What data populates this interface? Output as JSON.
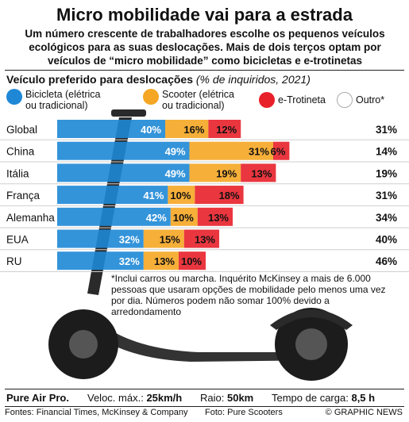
{
  "title": "Micro mobilidade vai para a estrada",
  "subtitle": "Um número crescente de trabalhadores escolhe os pequenos veículos ecológicos para as suas deslocações. Mais de dois terços optam por veículos de “micro mobilidade” como bicicletas e e-trotinetas",
  "section": {
    "title": "Veículo preferido para deslocações",
    "note": "(% de inquiridos, 2021)"
  },
  "legend": [
    {
      "label": "Bicicleta (elétrica\nou tradicional)",
      "color": "#1e88d6"
    },
    {
      "label": "Scooter (elétrica\nou tradicional)",
      "color": "#f5a623"
    },
    {
      "label": "e-Trotineta",
      "color": "#e8202a"
    },
    {
      "label": "Outro*",
      "color": "#ffffff"
    }
  ],
  "chart_data": {
    "type": "bar",
    "orientation": "horizontal",
    "stacked": true,
    "categories": [
      "Global",
      "China",
      "Itália",
      "França",
      "Alemanha",
      "EUA",
      "RU"
    ],
    "series": [
      {
        "name": "Bicicleta (elétrica ou tradicional)",
        "color": "#1e88d6",
        "values": [
          40,
          49,
          49,
          41,
          42,
          32,
          32
        ]
      },
      {
        "name": "Scooter (elétrica ou tradicional)",
        "color": "#f5a623",
        "values": [
          16,
          31,
          19,
          10,
          10,
          15,
          13
        ]
      },
      {
        "name": "e-Trotineta",
        "color": "#e8202a",
        "values": [
          12,
          6,
          13,
          18,
          13,
          13,
          10
        ]
      },
      {
        "name": "Outro*",
        "color": "#ffffff",
        "values": [
          31,
          14,
          19,
          31,
          34,
          40,
          46
        ]
      }
    ],
    "value_suffix": "%"
  },
  "footnote": "*Inclui carros ou marcha. Inquérito McKinsey a mais de 6.000 pessoas que usaram opções de mobilidade pelo menos uma vez por dia. Números podem não somar 100% devido a arredondamento",
  "specs": {
    "model": "Pure Air Pro.",
    "speed_label": "Veloc. máx.:",
    "speed_value": "25km/h",
    "range_label": "Raio:",
    "range_value": "50km",
    "charge_label": "Tempo de carga:",
    "charge_value": "8,5 h"
  },
  "credits": {
    "sources": "Fontes: Financial Times, McKinsey & Company",
    "photo": "Foto: Pure Scooters",
    "brand": "© GRAPHIC NEWS"
  }
}
